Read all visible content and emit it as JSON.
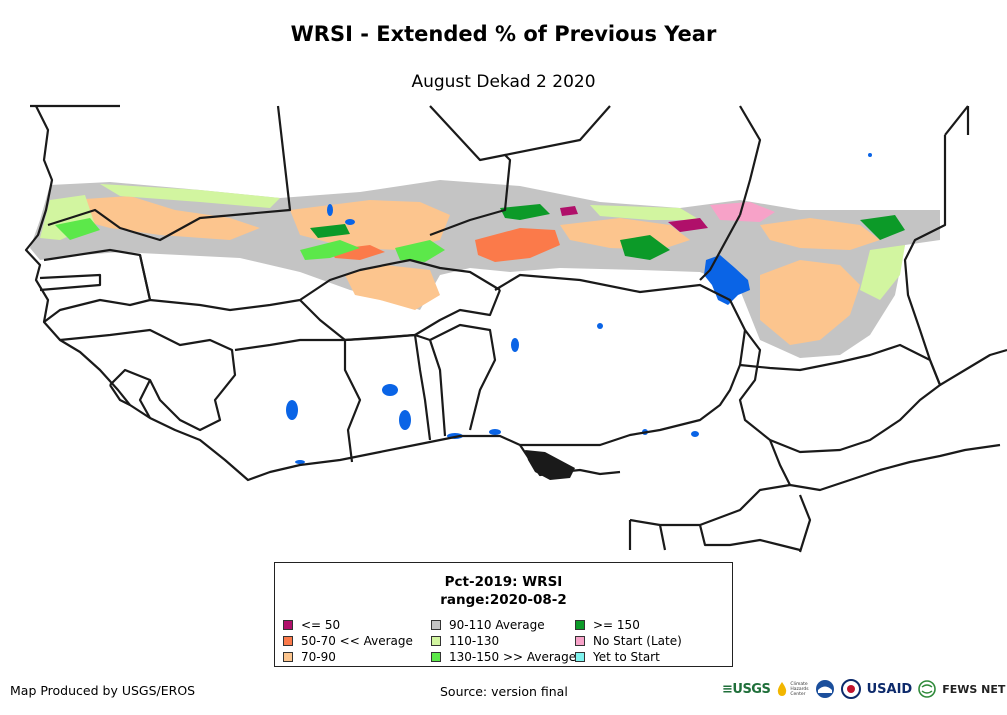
{
  "title": "WRSI - Extended % of Previous Year",
  "subtitle": "August Dekad 2 2020",
  "legend": {
    "title_line1": "Pct-2019: WRSI",
    "title_line2": "range:2020-08-2",
    "items": [
      {
        "label": "<= 50",
        "color": "#b0106a"
      },
      {
        "label": "90-110 Average",
        "color": "#c4c4c4"
      },
      {
        "label": ">= 150",
        "color": "#0c9a28"
      },
      {
        "label": "50-70 << Average",
        "color": "#fb7a4a"
      },
      {
        "label": "110-130",
        "color": "#d2f5a0"
      },
      {
        "label": "No Start (Late)",
        "color": "#f7a2c8"
      },
      {
        "label": "70-90",
        "color": "#fcc58e"
      },
      {
        "label": "130-150 >> Average",
        "color": "#5ce84a"
      },
      {
        "label": "Yet to Start",
        "color": "#7ff3ee"
      }
    ]
  },
  "footer": {
    "producer": "Map Produced by USGS/EROS",
    "source": "Source: version final"
  },
  "logos": {
    "usgs": "≡USGS",
    "chc_line1": "Climate",
    "chc_line2": "Hazards",
    "chc_line3": "Center",
    "usaid": "USAID",
    "fews": "FEWS NET"
  },
  "colors": {
    "water": "#0a64e6",
    "border": "#1a1a1a"
  }
}
